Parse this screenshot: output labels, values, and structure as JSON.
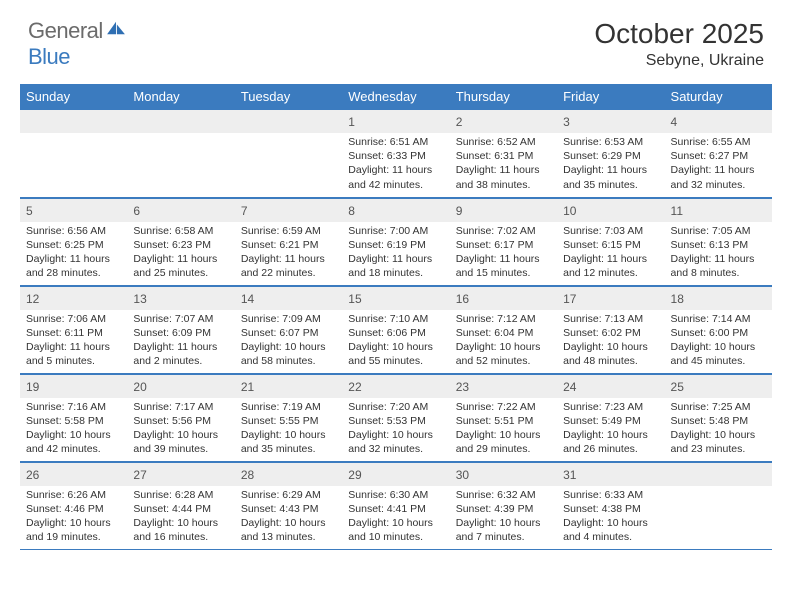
{
  "logo": {
    "text_general": "General",
    "text_blue": "Blue",
    "icon_color": "#2f6fb3"
  },
  "title": "October 2025",
  "location": "Sebyne, Ukraine",
  "colors": {
    "header_bg": "#3b7bbf",
    "header_text": "#ffffff",
    "daynum_bg": "#eeeeee",
    "border": "#3b7bbf",
    "body_text": "#333333"
  },
  "day_headers": [
    "Sunday",
    "Monday",
    "Tuesday",
    "Wednesday",
    "Thursday",
    "Friday",
    "Saturday"
  ],
  "weeks": [
    [
      null,
      null,
      null,
      {
        "n": "1",
        "sunrise": "6:51 AM",
        "sunset": "6:33 PM",
        "daylight": "11 hours and 42 minutes."
      },
      {
        "n": "2",
        "sunrise": "6:52 AM",
        "sunset": "6:31 PM",
        "daylight": "11 hours and 38 minutes."
      },
      {
        "n": "3",
        "sunrise": "6:53 AM",
        "sunset": "6:29 PM",
        "daylight": "11 hours and 35 minutes."
      },
      {
        "n": "4",
        "sunrise": "6:55 AM",
        "sunset": "6:27 PM",
        "daylight": "11 hours and 32 minutes."
      }
    ],
    [
      {
        "n": "5",
        "sunrise": "6:56 AM",
        "sunset": "6:25 PM",
        "daylight": "11 hours and 28 minutes."
      },
      {
        "n": "6",
        "sunrise": "6:58 AM",
        "sunset": "6:23 PM",
        "daylight": "11 hours and 25 minutes."
      },
      {
        "n": "7",
        "sunrise": "6:59 AM",
        "sunset": "6:21 PM",
        "daylight": "11 hours and 22 minutes."
      },
      {
        "n": "8",
        "sunrise": "7:00 AM",
        "sunset": "6:19 PM",
        "daylight": "11 hours and 18 minutes."
      },
      {
        "n": "9",
        "sunrise": "7:02 AM",
        "sunset": "6:17 PM",
        "daylight": "11 hours and 15 minutes."
      },
      {
        "n": "10",
        "sunrise": "7:03 AM",
        "sunset": "6:15 PM",
        "daylight": "11 hours and 12 minutes."
      },
      {
        "n": "11",
        "sunrise": "7:05 AM",
        "sunset": "6:13 PM",
        "daylight": "11 hours and 8 minutes."
      }
    ],
    [
      {
        "n": "12",
        "sunrise": "7:06 AM",
        "sunset": "6:11 PM",
        "daylight": "11 hours and 5 minutes."
      },
      {
        "n": "13",
        "sunrise": "7:07 AM",
        "sunset": "6:09 PM",
        "daylight": "11 hours and 2 minutes."
      },
      {
        "n": "14",
        "sunrise": "7:09 AM",
        "sunset": "6:07 PM",
        "daylight": "10 hours and 58 minutes."
      },
      {
        "n": "15",
        "sunrise": "7:10 AM",
        "sunset": "6:06 PM",
        "daylight": "10 hours and 55 minutes."
      },
      {
        "n": "16",
        "sunrise": "7:12 AM",
        "sunset": "6:04 PM",
        "daylight": "10 hours and 52 minutes."
      },
      {
        "n": "17",
        "sunrise": "7:13 AM",
        "sunset": "6:02 PM",
        "daylight": "10 hours and 48 minutes."
      },
      {
        "n": "18",
        "sunrise": "7:14 AM",
        "sunset": "6:00 PM",
        "daylight": "10 hours and 45 minutes."
      }
    ],
    [
      {
        "n": "19",
        "sunrise": "7:16 AM",
        "sunset": "5:58 PM",
        "daylight": "10 hours and 42 minutes."
      },
      {
        "n": "20",
        "sunrise": "7:17 AM",
        "sunset": "5:56 PM",
        "daylight": "10 hours and 39 minutes."
      },
      {
        "n": "21",
        "sunrise": "7:19 AM",
        "sunset": "5:55 PM",
        "daylight": "10 hours and 35 minutes."
      },
      {
        "n": "22",
        "sunrise": "7:20 AM",
        "sunset": "5:53 PM",
        "daylight": "10 hours and 32 minutes."
      },
      {
        "n": "23",
        "sunrise": "7:22 AM",
        "sunset": "5:51 PM",
        "daylight": "10 hours and 29 minutes."
      },
      {
        "n": "24",
        "sunrise": "7:23 AM",
        "sunset": "5:49 PM",
        "daylight": "10 hours and 26 minutes."
      },
      {
        "n": "25",
        "sunrise": "7:25 AM",
        "sunset": "5:48 PM",
        "daylight": "10 hours and 23 minutes."
      }
    ],
    [
      {
        "n": "26",
        "sunrise": "6:26 AM",
        "sunset": "4:46 PM",
        "daylight": "10 hours and 19 minutes."
      },
      {
        "n": "27",
        "sunrise": "6:28 AM",
        "sunset": "4:44 PM",
        "daylight": "10 hours and 16 minutes."
      },
      {
        "n": "28",
        "sunrise": "6:29 AM",
        "sunset": "4:43 PM",
        "daylight": "10 hours and 13 minutes."
      },
      {
        "n": "29",
        "sunrise": "6:30 AM",
        "sunset": "4:41 PM",
        "daylight": "10 hours and 10 minutes."
      },
      {
        "n": "30",
        "sunrise": "6:32 AM",
        "sunset": "4:39 PM",
        "daylight": "10 hours and 7 minutes."
      },
      {
        "n": "31",
        "sunrise": "6:33 AM",
        "sunset": "4:38 PM",
        "daylight": "10 hours and 4 minutes."
      },
      null
    ]
  ],
  "labels": {
    "sunrise_prefix": "Sunrise: ",
    "sunset_prefix": "Sunset: ",
    "daylight_prefix": "Daylight: "
  }
}
